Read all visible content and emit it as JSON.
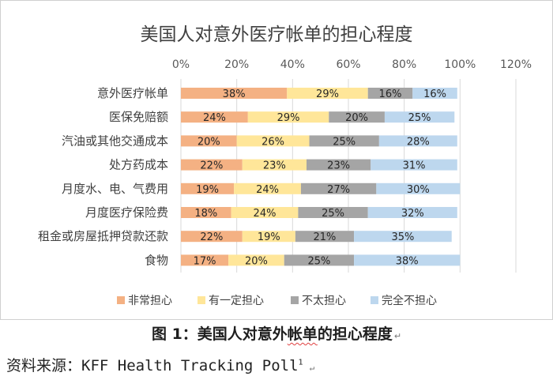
{
  "chart_data": {
    "type": "stacked-bar-horizontal",
    "title": "美国人对意外医疗帐单的担心程度",
    "x_axis": {
      "range": [
        0,
        120
      ],
      "ticks": [
        0,
        20,
        40,
        60,
        80,
        100,
        120
      ],
      "tick_labels": [
        "0%",
        "20%",
        "40%",
        "60%",
        "80%",
        "100%",
        "120%"
      ]
    },
    "categories": [
      "意外医疗帐单",
      "医保免赔额",
      "汽油或其他交通成本",
      "处方药成本",
      "月度水、电、气费用",
      "月度医疗保险费",
      "租金或房屋抵押贷款还款",
      "食物"
    ],
    "series": [
      {
        "name": "非常担心",
        "color": "#F4B183",
        "values": [
          38,
          24,
          20,
          22,
          19,
          18,
          22,
          17
        ]
      },
      {
        "name": "有一定担心",
        "color": "#FFE699",
        "values": [
          29,
          29,
          26,
          23,
          24,
          24,
          19,
          20
        ]
      },
      {
        "name": "不太担心",
        "color": "#A5A5A5",
        "values": [
          16,
          20,
          25,
          23,
          27,
          25,
          21,
          25
        ]
      },
      {
        "name": "完全不担心",
        "color": "#BDD7EE",
        "values": [
          16,
          25,
          28,
          31,
          30,
          32,
          35,
          38
        ]
      }
    ],
    "legend_position": "bottom",
    "grid": true
  },
  "caption": {
    "prefix": "图 1：美国人对意外",
    "wavy": "帐单",
    "suffix": "的担心程度"
  },
  "source": {
    "text": "资料来源：KFF Health Tracking Poll",
    "footnote": "1"
  },
  "paragraph_mark": "↵"
}
